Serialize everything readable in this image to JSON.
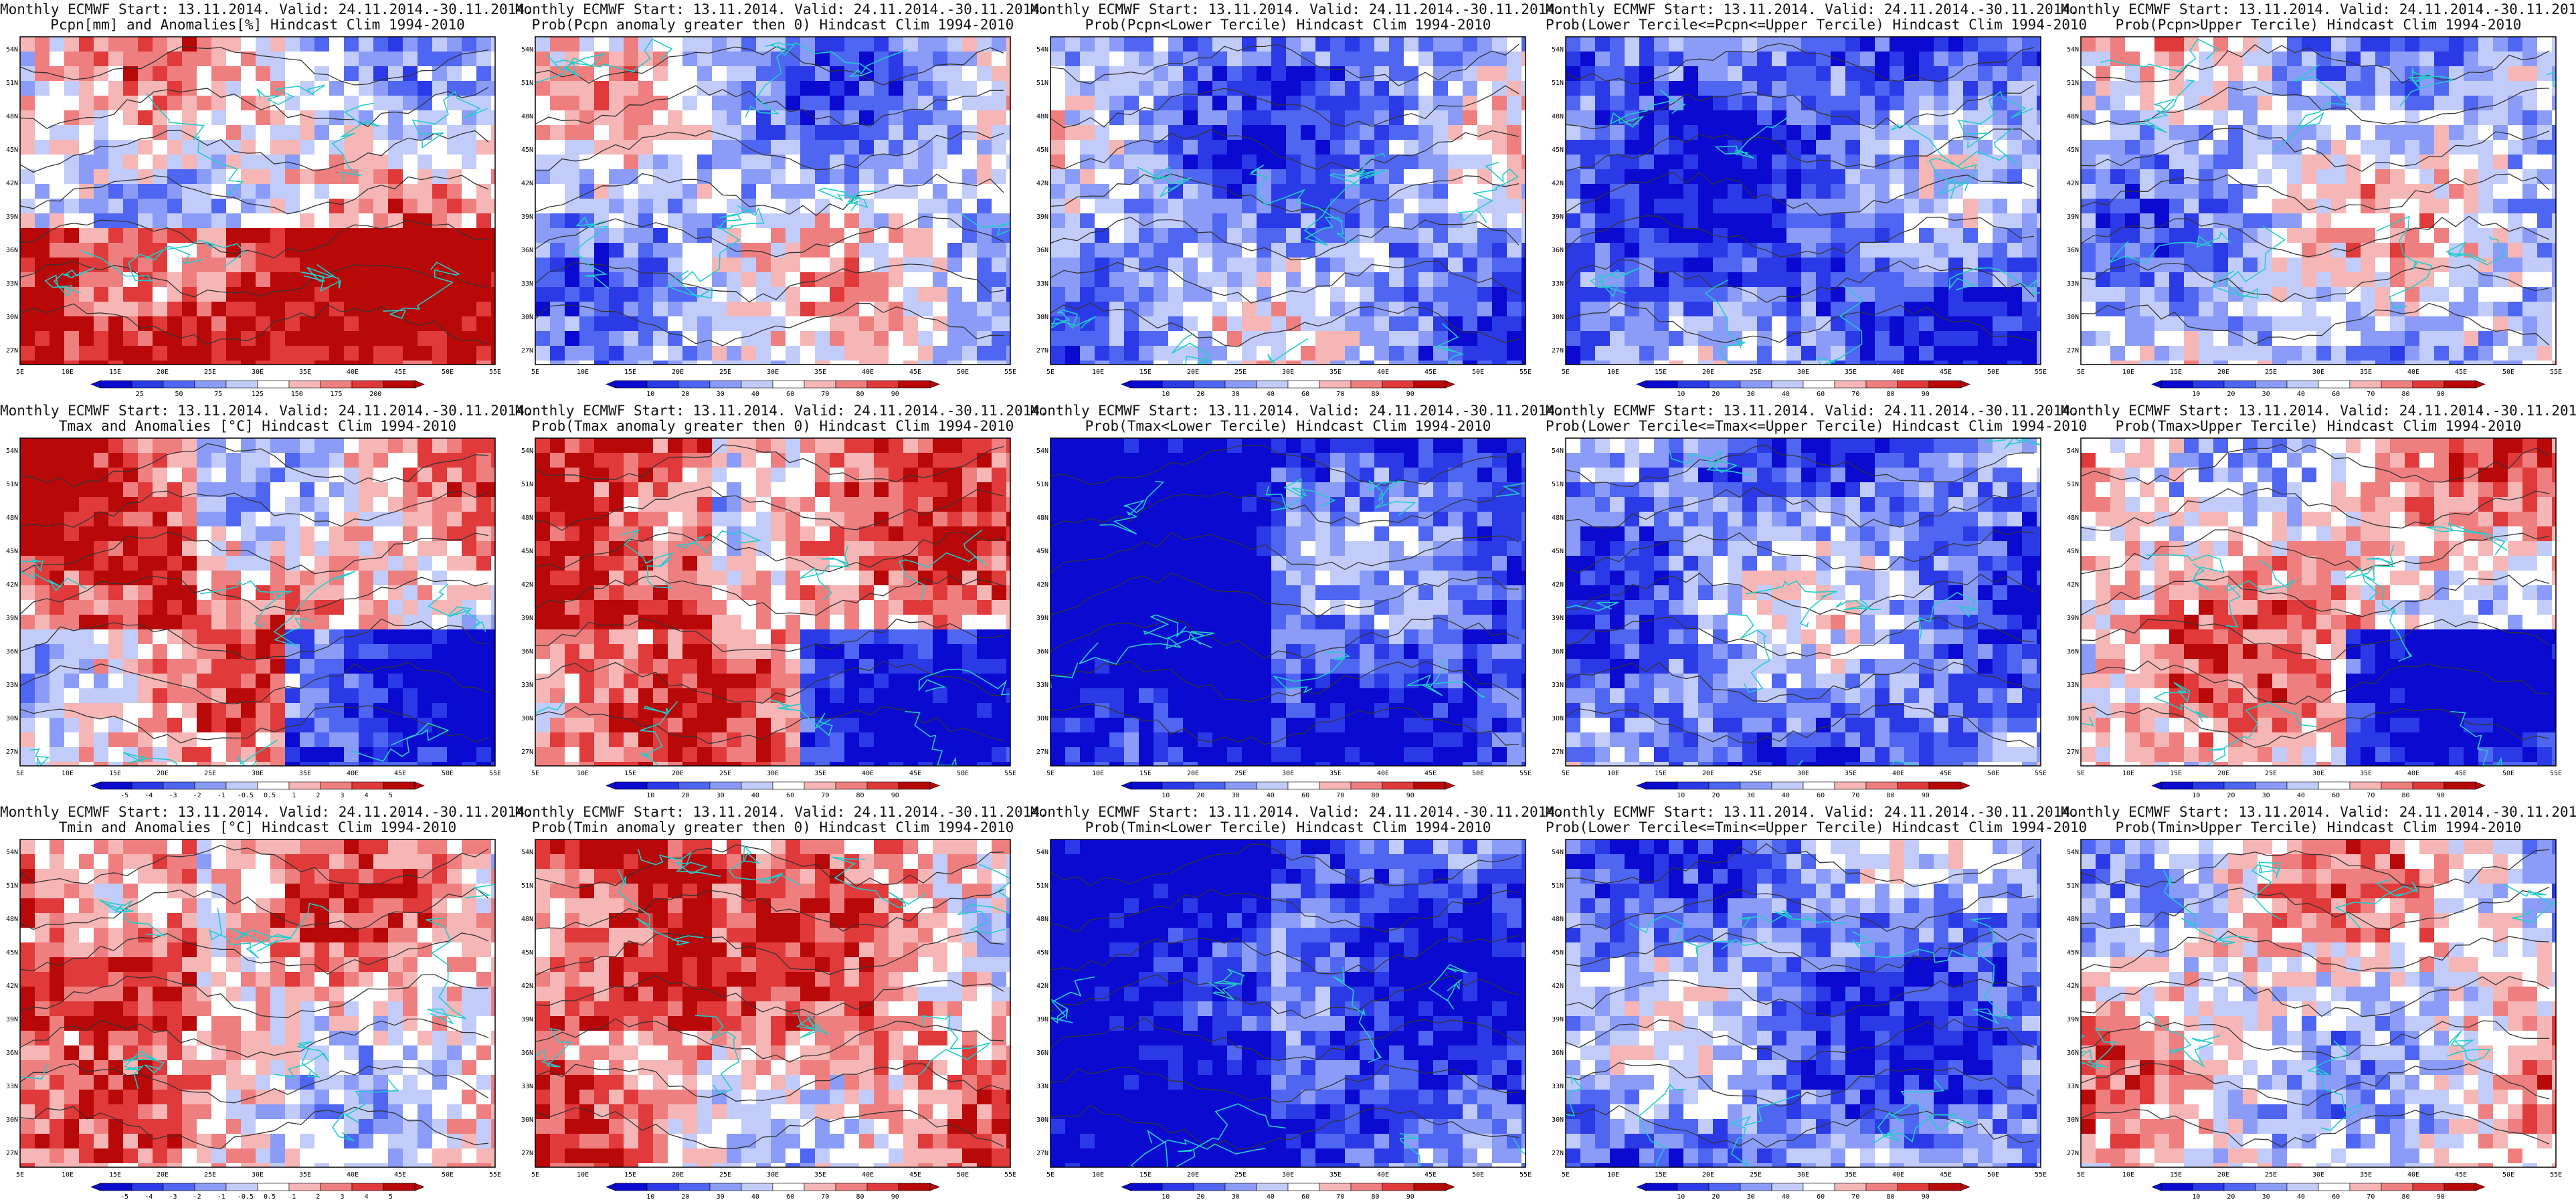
{
  "title_line1": "Monthly ECMWF Start: 13.11.2014. Valid: 24.11.2014.-30.11.2014.",
  "panels": [
    {
      "title2": "Pcpn[mm] and Anomalies[%] Hindcast Clim 1994-2010",
      "kind": "anom",
      "colorbar_labels": [
        "25",
        "50",
        "75",
        "125",
        "150",
        "175",
        "200"
      ]
    },
    {
      "title2": "Prob(Pcpn anomaly greater then 0) Hindcast Clim 1994-2010",
      "kind": "prob",
      "colorbar_labels": [
        "10",
        "20",
        "30",
        "40",
        "60",
        "70",
        "80",
        "90"
      ]
    },
    {
      "title2": "Prob(Pcpn<Lower Tercile) Hindcast Clim 1994-2010",
      "kind": "prob",
      "colorbar_labels": [
        "10",
        "20",
        "30",
        "40",
        "60",
        "70",
        "80",
        "90"
      ]
    },
    {
      "title2": "Prob(Lower Tercile<=Pcpn<=Upper Tercile) Hindcast Clim 1994-2010",
      "kind": "prob",
      "colorbar_labels": [
        "10",
        "20",
        "30",
        "40",
        "60",
        "70",
        "80",
        "90"
      ]
    },
    {
      "title2": "Prob(Pcpn>Upper Tercile) Hindcast Clim 1994-2010",
      "kind": "prob",
      "colorbar_labels": [
        "10",
        "20",
        "30",
        "40",
        "60",
        "70",
        "80",
        "90"
      ]
    },
    {
      "title2": "Tmax and Anomalies [°C] Hindcast Clim 1994-2010",
      "kind": "anom",
      "colorbar_labels": [
        "-5",
        "-4",
        "-3",
        "-2",
        "-1",
        "-0.5",
        "0.5",
        "1",
        "2",
        "3",
        "4",
        "5"
      ]
    },
    {
      "title2": "Prob(Tmax anomaly greater then 0) Hindcast Clim 1994-2010",
      "kind": "prob",
      "colorbar_labels": [
        "10",
        "20",
        "30",
        "40",
        "60",
        "70",
        "80",
        "90"
      ]
    },
    {
      "title2": "Prob(Tmax<Lower Tercile) Hindcast Clim 1994-2010",
      "kind": "prob",
      "colorbar_labels": [
        "10",
        "20",
        "30",
        "40",
        "60",
        "70",
        "80",
        "90"
      ]
    },
    {
      "title2": "Prob(Lower Tercile<=Tmax<=Upper Tercile) Hindcast Clim 1994-2010",
      "kind": "prob",
      "colorbar_labels": [
        "10",
        "20",
        "30",
        "40",
        "60",
        "70",
        "80",
        "90"
      ]
    },
    {
      "title2": "Prob(Tmax>Upper Tercile) Hindcast Clim 1994-2010",
      "kind": "prob",
      "colorbar_labels": [
        "10",
        "20",
        "30",
        "40",
        "60",
        "70",
        "80",
        "90"
      ]
    },
    {
      "title2": "Tmin and Anomalies [°C] Hindcast Clim 1994-2010",
      "kind": "anom",
      "colorbar_labels": [
        "-5",
        "-4",
        "-3",
        "-2",
        "-1",
        "-0.5",
        "0.5",
        "1",
        "2",
        "3",
        "4",
        "5"
      ]
    },
    {
      "title2": "Prob(Tmin anomaly greater then 0) Hindcast Clim 1994-2010",
      "kind": "prob",
      "colorbar_labels": [
        "10",
        "20",
        "30",
        "40",
        "60",
        "70",
        "80",
        "90"
      ]
    },
    {
      "title2": "Prob(Tmin<Lower Tercile) Hindcast Clim 1994-2010",
      "kind": "prob",
      "colorbar_labels": [
        "10",
        "20",
        "30",
        "40",
        "60",
        "70",
        "80",
        "90"
      ]
    },
    {
      "title2": "Prob(Lower Tercile<=Tmin<=Upper Tercile) Hindcast Clim 1994-2010",
      "kind": "prob",
      "colorbar_labels": [
        "10",
        "20",
        "30",
        "40",
        "60",
        "70",
        "80",
        "90"
      ]
    },
    {
      "title2": "Prob(Tmin>Upper Tercile) Hindcast Clim 1994-2010",
      "kind": "prob",
      "colorbar_labels": [
        "10",
        "20",
        "30",
        "40",
        "60",
        "70",
        "80",
        "90"
      ]
    }
  ],
  "lat_labels": [
    "54N",
    "51N",
    "48N",
    "45N",
    "42N",
    "39N",
    "36N",
    "33N",
    "30N",
    "27N"
  ],
  "lon_labels": [
    "5E",
    "10E",
    "15E",
    "20E",
    "25E",
    "30E",
    "35E",
    "40E",
    "45E",
    "50E",
    "55E"
  ],
  "colors": {
    "prob_scale": [
      "#0a0ad0",
      "#2a3ae6",
      "#4f66f2",
      "#8a9cf8",
      "#c2ccfb",
      "#ffffff",
      "#f7b6b6",
      "#ef7f7f",
      "#e03a3a",
      "#b80808"
    ],
    "anom_scale": [
      "#0a0ad0",
      "#2a3ae6",
      "#4f66f2",
      "#8a9cf8",
      "#c2ccfb",
      "#ffffff",
      "#f7b6b6",
      "#ef7f7f",
      "#e03a3a",
      "#b80808"
    ],
    "coast": "#22cccc",
    "contour": "#333333"
  }
}
